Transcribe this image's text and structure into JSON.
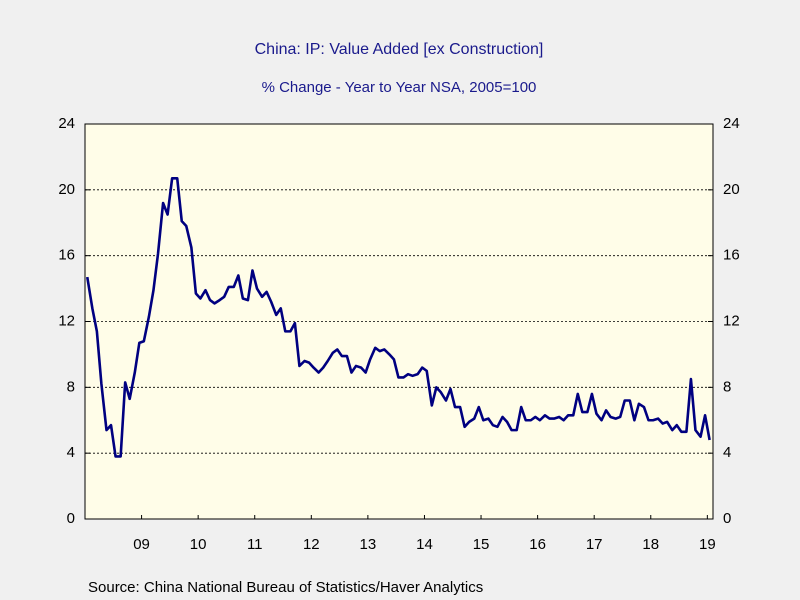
{
  "chart_data": {
    "type": "line",
    "title": "China: IP: Value Added [ex Construction]",
    "subtitle": "% Change - Year to Year    NSA, 2005=100",
    "source": "Source:  China National Bureau of Statistics/Haver Analytics",
    "x": [
      2008.54,
      2008.63,
      2008.71,
      2008.79,
      2008.88,
      2008.96,
      2009.04,
      2009.13,
      2009.21,
      2009.29,
      2009.38,
      2009.46,
      2009.54,
      2009.63,
      2009.71,
      2009.79,
      2009.88,
      2009.96,
      2010.04,
      2010.13,
      2010.21,
      2010.29,
      2010.38,
      2010.46,
      2010.54,
      2010.63,
      2010.71,
      2010.79,
      2010.88,
      2010.96,
      2011.04,
      2011.13,
      2011.21,
      2011.29,
      2011.38,
      2011.46,
      2011.54,
      2011.63,
      2011.71,
      2011.79,
      2011.88,
      2011.96,
      2012.04,
      2012.13,
      2012.21,
      2012.29,
      2012.38,
      2012.46,
      2012.54,
      2012.63,
      2012.71,
      2012.79,
      2012.88,
      2012.96,
      2013.04,
      2013.13,
      2013.21,
      2013.29,
      2013.38,
      2013.46,
      2013.54,
      2013.63,
      2013.71,
      2013.79,
      2013.88,
      2013.96,
      2014.04,
      2014.13,
      2014.21,
      2014.29,
      2014.38,
      2014.46,
      2014.54,
      2014.63,
      2014.71,
      2014.79,
      2014.88,
      2014.96,
      2015.04,
      2015.13,
      2015.21,
      2015.29,
      2015.38,
      2015.46,
      2015.54,
      2015.63,
      2015.71,
      2015.79,
      2015.88,
      2015.96,
      2016.04,
      2016.13,
      2016.21,
      2016.29,
      2016.38,
      2016.46,
      2016.54,
      2016.63,
      2016.71,
      2016.79,
      2016.88,
      2016.96,
      2017.04,
      2017.13,
      2017.21,
      2017.29,
      2017.38,
      2017.46,
      2017.54,
      2017.63,
      2017.71,
      2017.79,
      2017.88,
      2017.96,
      2018.04,
      2018.13,
      2018.21,
      2018.29,
      2018.38,
      2018.46,
      2018.54,
      2018.63,
      2018.71,
      2018.79,
      2018.88,
      2018.96,
      2019.04,
      2019.13,
      2019.21,
      2019.29,
      2019.38,
      2019.46,
      2019.54
    ],
    "series": [
      {
        "color": "#000080",
        "values": [
          14.7,
          12.8,
          11.4,
          8.2,
          5.4,
          5.7,
          3.8,
          3.8,
          8.3,
          7.3,
          8.9,
          10.7,
          10.8,
          12.3,
          13.9,
          16.1,
          19.2,
          18.5,
          20.7,
          20.7,
          18.1,
          17.8,
          16.5,
          13.7,
          13.4,
          13.9,
          13.3,
          13.1,
          13.3,
          13.5,
          14.1,
          14.1,
          14.8,
          13.4,
          13.3,
          15.1,
          14.0,
          13.5,
          13.8,
          13.2,
          12.4,
          12.8,
          11.4,
          11.4,
          11.9,
          9.3,
          9.6,
          9.5,
          9.2,
          8.9,
          9.2,
          9.6,
          10.1,
          10.3,
          9.9,
          9.9,
          8.9,
          9.3,
          9.2,
          8.9,
          9.7,
          10.4,
          10.2,
          10.3,
          10.0,
          9.7,
          8.6,
          8.6,
          8.8,
          8.7,
          8.8,
          9.2,
          9.0,
          6.9,
          8.0,
          7.7,
          7.2,
          7.9,
          6.8,
          6.8,
          5.6,
          5.9,
          6.1,
          6.8,
          6.0,
          6.1,
          5.7,
          5.6,
          6.2,
          5.9,
          5.4,
          5.4,
          6.8,
          6.0,
          6.0,
          6.2,
          6.0,
          6.3,
          6.1,
          6.1,
          6.2,
          6.0,
          6.3,
          6.3,
          7.6,
          6.5,
          6.5,
          7.6,
          6.4,
          6.0,
          6.6,
          6.2,
          6.1,
          6.2,
          7.2,
          7.2,
          6.0,
          7.0,
          6.8,
          6.0,
          6.0,
          6.1,
          5.8,
          5.9,
          5.4,
          5.7,
          5.3,
          5.3,
          8.5,
          5.4,
          5.0,
          6.3,
          4.8
        ]
      }
    ],
    "xlim": [
      2008.5,
      2019.6
    ],
    "xticks": [
      {
        "value": 2009.5,
        "label": "09"
      },
      {
        "value": 2010.5,
        "label": "10"
      },
      {
        "value": 2011.5,
        "label": "11"
      },
      {
        "value": 2012.5,
        "label": "12"
      },
      {
        "value": 2013.5,
        "label": "13"
      },
      {
        "value": 2014.5,
        "label": "14"
      },
      {
        "value": 2015.5,
        "label": "15"
      },
      {
        "value": 2016.5,
        "label": "16"
      },
      {
        "value": 2017.5,
        "label": "17"
      },
      {
        "value": 2018.5,
        "label": "18"
      },
      {
        "value": 2019.5,
        "label": "19"
      }
    ],
    "ylim": [
      0,
      24
    ],
    "yticks": [
      0,
      4,
      8,
      12,
      16,
      20,
      24
    ],
    "y2lim": [
      0,
      24
    ],
    "y2ticks": [
      0,
      4,
      8,
      12,
      16,
      20,
      24
    ],
    "grid": true
  }
}
